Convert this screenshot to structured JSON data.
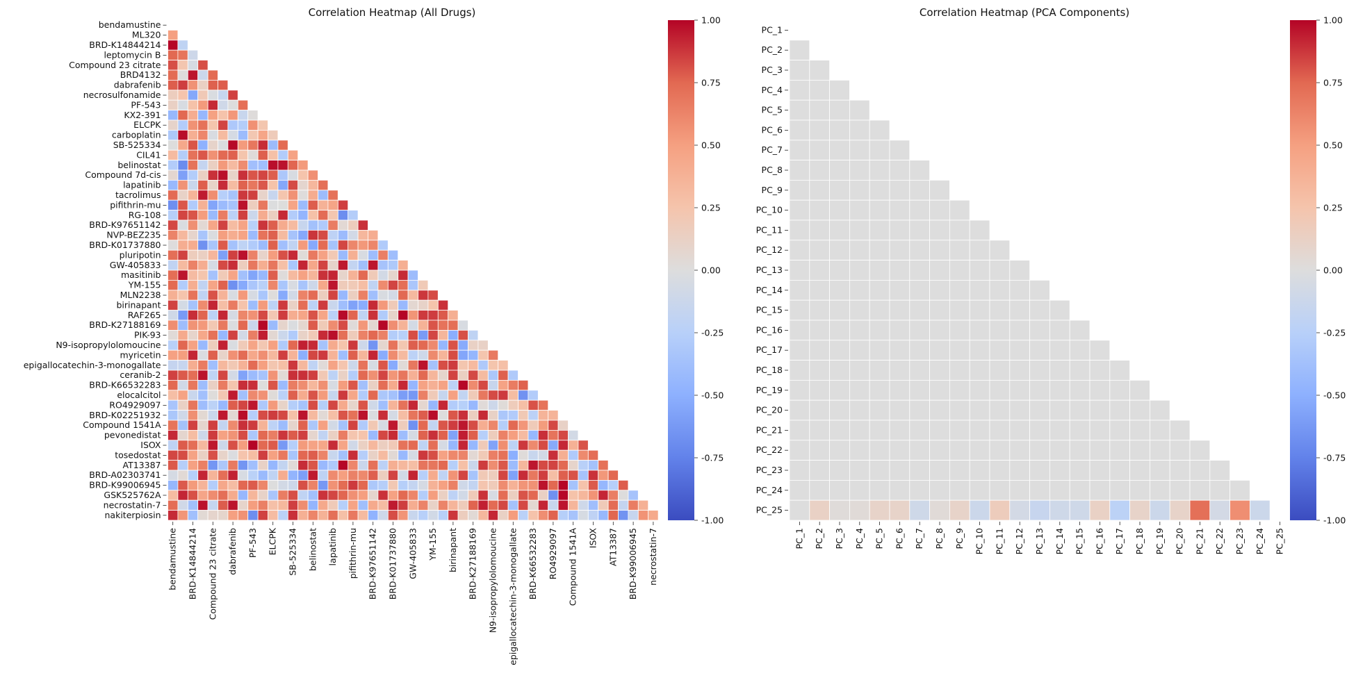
{
  "chart_data": [
    {
      "type": "heatmap",
      "title": "Correlation Heatmap (All Drugs)",
      "labels": [
        "bendamustine",
        "ML320",
        "BRD-K14844214",
        "leptomycin B",
        "Compound 23 citrate",
        "BRD4132",
        "dabrafenib",
        "necrosulfonamide",
        "PF-543",
        "KX2-391",
        "ELCPK",
        "carboplatin",
        "SB-525334",
        "CIL41",
        "belinostat",
        "Compound 7d-cis",
        "lapatinib",
        "tacrolimus",
        "pifithrin-mu",
        "RG-108",
        "BRD-K97651142",
        "NVP-BEZ235",
        "BRD-K01737880",
        "pluripotin",
        "GW-405833",
        "masitinib",
        "YM-155",
        "MLN2238",
        "birinapant",
        "RAF265",
        "BRD-K27188169",
        "PIK-93",
        "N9-isopropylolomoucine",
        "myricetin",
        "epigallocatechin-3-monogallate",
        "ceranib-2",
        "BRD-K66532283",
        "elocalcitol",
        "RO4929097",
        "BRD-K02251932",
        "Compound 1541A",
        "pevonedistat",
        "ISOX",
        "tosedostat",
        "AT13387",
        "BRD-A02303741",
        "BRD-K99006945",
        "GSK525762A",
        "necrostatin-7",
        "nakiterpiosin"
      ],
      "x_tick_labels": [
        "bendamustine",
        "BRD-K14844214",
        "Compound 23 citrate",
        "dabrafenib",
        "PF-543",
        "ELCPK",
        "SB-525334",
        "belinostat",
        "lapatinib",
        "pifithrin-mu",
        "BRD-K97651142",
        "BRD-K01737880",
        "GW-405833",
        "YM-155",
        "birinapant",
        "BRD-K27188169",
        "N9-isopropylolomoucine",
        "epigallocatechin-3-monogallate",
        "BRD-K66532283",
        "RO4929097",
        "Compound 1541A",
        "ISOX",
        "AT13387",
        "BRD-K99006945",
        "necrostatin-7"
      ],
      "colorbar": {
        "min": -1.0,
        "max": 1.0,
        "ticks": [
          "1.00",
          "0.75",
          "0.50",
          "0.25",
          "0.00",
          "-0.25",
          "-0.50",
          "-0.75",
          "-1.00"
        ]
      },
      "mask": "upper-triangle",
      "seed": 12345
    },
    {
      "type": "heatmap",
      "title": "Correlation Heatmap (PCA Components)",
      "labels": [
        "PC_1",
        "PC_2",
        "PC_3",
        "PC_4",
        "PC_5",
        "PC_6",
        "PC_7",
        "PC_8",
        "PC_9",
        "PC_10",
        "PC_11",
        "PC_12",
        "PC_13",
        "PC_14",
        "PC_15",
        "PC_16",
        "PC_17",
        "PC_18",
        "PC_19",
        "PC_20",
        "PC_21",
        "PC_22",
        "PC_23",
        "PC_24",
        "PC_25"
      ],
      "last_row_values": [
        0.0,
        0.12,
        0.02,
        0.03,
        0.1,
        0.1,
        -0.1,
        0.03,
        0.1,
        -0.12,
        0.17,
        -0.07,
        -0.15,
        -0.1,
        -0.1,
        0.12,
        -0.22,
        0.1,
        -0.12,
        0.1,
        0.72,
        -0.07,
        0.58,
        -0.12
      ],
      "off_diagonal_value": 0.0,
      "colorbar": {
        "min": -1.0,
        "max": 1.0,
        "ticks": [
          "1.00",
          "0.75",
          "0.50",
          "0.25",
          "0.00",
          "-0.25",
          "-0.50",
          "-0.75",
          "-1.00"
        ]
      },
      "mask": "upper-triangle"
    }
  ]
}
